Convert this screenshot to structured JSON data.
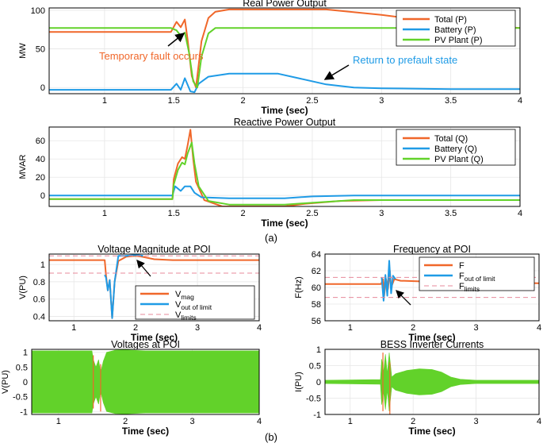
{
  "figure": {
    "label_a": "(a)",
    "label_b": "(b)"
  },
  "colors": {
    "total": "#f0672a",
    "battery": "#1f9be6",
    "pv": "#62d22a",
    "limits": "#e7899b",
    "axis": "#000000",
    "grid": "#e6e6e6"
  },
  "chart_data": [
    {
      "id": "real_power",
      "type": "line",
      "title": "Real Power Output",
      "xlabel": "Time (sec)",
      "ylabel": "MW",
      "xlim": [
        0.6,
        4
      ],
      "ylim": [
        -8,
        103
      ],
      "xticks": [
        1,
        1.5,
        2,
        2.5,
        3,
        3.5,
        4
      ],
      "yticks": [
        0,
        50,
        100
      ],
      "grid": true,
      "legend": "top-right",
      "series": [
        {
          "name": "Total (P)",
          "color": "#f0672a",
          "points": [
            [
              0.6,
              72
            ],
            [
              1.48,
              72
            ],
            [
              1.52,
              85
            ],
            [
              1.55,
              78
            ],
            [
              1.58,
              88
            ],
            [
              1.6,
              62
            ],
            [
              1.63,
              15
            ],
            [
              1.66,
              0
            ],
            [
              1.7,
              60
            ],
            [
              1.75,
              90
            ],
            [
              1.8,
              98
            ],
            [
              1.9,
              101
            ],
            [
              2.2,
              101
            ],
            [
              2.6,
              101
            ],
            [
              3,
              94
            ],
            [
              3.5,
              83
            ],
            [
              4,
              77
            ]
          ]
        },
        {
          "name": "Battery (P)",
          "color": "#1f9be6",
          "points": [
            [
              0.6,
              -3
            ],
            [
              1.48,
              -3
            ],
            [
              1.52,
              5
            ],
            [
              1.55,
              -3
            ],
            [
              1.58,
              12
            ],
            [
              1.62,
              -5
            ],
            [
              1.65,
              -6
            ],
            [
              1.68,
              5
            ],
            [
              1.75,
              14
            ],
            [
              1.9,
              18
            ],
            [
              2.25,
              18
            ],
            [
              2.4,
              12
            ],
            [
              2.6,
              4
            ],
            [
              2.8,
              0
            ],
            [
              3,
              -1
            ],
            [
              3.5,
              -2
            ],
            [
              4,
              -2
            ]
          ]
        },
        {
          "name": "PV Plant (P)",
          "color": "#62d22a",
          "points": [
            [
              0.6,
              77
            ],
            [
              1.48,
              77
            ],
            [
              1.52,
              74
            ],
            [
              1.55,
              67
            ],
            [
              1.58,
              71
            ],
            [
              1.61,
              45
            ],
            [
              1.64,
              8
            ],
            [
              1.67,
              0
            ],
            [
              1.7,
              40
            ],
            [
              1.75,
              70
            ],
            [
              1.8,
              77
            ],
            [
              4,
              77
            ]
          ]
        }
      ],
      "annotations": [
        "Temporary fault occurs",
        "Return to prefault state"
      ]
    },
    {
      "id": "reactive_power",
      "type": "line",
      "title": "Reactive Power Output",
      "xlabel": "Time (sec)",
      "ylabel": "MVAR",
      "xlim": [
        0.6,
        4
      ],
      "ylim": [
        -12,
        75
      ],
      "xticks": [
        1,
        1.5,
        2,
        2.5,
        3,
        3.5,
        4
      ],
      "yticks": [
        0,
        20,
        40,
        60
      ],
      "grid": true,
      "legend": "top-right",
      "series": [
        {
          "name": "Total (Q)",
          "color": "#f0672a",
          "points": [
            [
              0.6,
              -4
            ],
            [
              1.49,
              -4
            ],
            [
              1.5,
              18
            ],
            [
              1.53,
              35
            ],
            [
              1.56,
              42
            ],
            [
              1.58,
              40
            ],
            [
              1.6,
              55
            ],
            [
              1.62,
              72
            ],
            [
              1.64,
              40
            ],
            [
              1.66,
              15
            ],
            [
              1.72,
              -5
            ],
            [
              1.85,
              -12
            ],
            [
              2.3,
              -12
            ],
            [
              2.45,
              -9
            ],
            [
              2.7,
              -6
            ],
            [
              3,
              -5
            ],
            [
              4,
              -5
            ]
          ]
        },
        {
          "name": "Battery (Q)",
          "color": "#1f9be6",
          "points": [
            [
              0.6,
              0
            ],
            [
              1.49,
              0
            ],
            [
              1.51,
              10
            ],
            [
              1.55,
              5
            ],
            [
              1.58,
              10
            ],
            [
              1.62,
              10
            ],
            [
              1.65,
              3
            ],
            [
              1.7,
              -2
            ],
            [
              1.9,
              -3
            ],
            [
              2.3,
              -3
            ],
            [
              2.5,
              -1
            ],
            [
              2.8,
              0
            ],
            [
              4,
              0
            ]
          ]
        },
        {
          "name": "PV Plant (Q)",
          "color": "#62d22a",
          "points": [
            [
              0.6,
              -4
            ],
            [
              1.49,
              -4
            ],
            [
              1.5,
              12
            ],
            [
              1.53,
              28
            ],
            [
              1.56,
              36
            ],
            [
              1.58,
              34
            ],
            [
              1.6,
              46
            ],
            [
              1.63,
              58
            ],
            [
              1.65,
              35
            ],
            [
              1.68,
              10
            ],
            [
              1.75,
              -6
            ],
            [
              1.9,
              -10
            ],
            [
              2.3,
              -10
            ],
            [
              2.5,
              -8
            ],
            [
              2.8,
              -5
            ],
            [
              4,
              -5
            ]
          ]
        }
      ]
    },
    {
      "id": "voltage_magnitude",
      "type": "line",
      "title": "Voltage Magnitude at POI",
      "xlabel": "Time (sec)",
      "ylabel": "V(PU)",
      "xlim": [
        0.6,
        4
      ],
      "ylim": [
        0.35,
        1.12
      ],
      "xticks": [
        1,
        2,
        3,
        4
      ],
      "yticks": [
        0.4,
        0.6,
        0.8,
        1
      ],
      "grid": true,
      "legend": "bottom-right",
      "series": [
        {
          "name": "V_mag",
          "color": "#f0672a",
          "points": [
            [
              0.6,
              1.05
            ],
            [
              1.5,
              1.05
            ],
            [
              1.52,
              0.88
            ],
            [
              1.55,
              0.7
            ],
            [
              1.58,
              0.82
            ],
            [
              1.62,
              0.38
            ],
            [
              1.66,
              0.8
            ],
            [
              1.72,
              1.04
            ],
            [
              1.85,
              1.09
            ],
            [
              2.0,
              1.1
            ],
            [
              2.1,
              1.09
            ],
            [
              2.3,
              1.06
            ],
            [
              2.6,
              1.05
            ],
            [
              4,
              1.05
            ]
          ]
        },
        {
          "name": "V_out of limit",
          "color": "#1f9be6",
          "points": [
            [
              1.5,
              0.88
            ],
            [
              1.52,
              0.85
            ],
            [
              1.55,
              0.7
            ],
            [
              1.58,
              0.82
            ],
            [
              1.62,
              0.38
            ],
            [
              1.66,
              0.8
            ],
            [
              1.72,
              1.1
            ],
            [
              1.85,
              1.1
            ],
            [
              2.0,
              1.11
            ],
            [
              2.12,
              1.1
            ]
          ]
        },
        {
          "name": "V_limits",
          "color": "#e7899b",
          "dashed": true,
          "points": [
            [
              0.6,
              1.1
            ],
            [
              4,
              1.1
            ]
          ]
        },
        {
          "name": "V_limits_lower",
          "color": "#e7899b",
          "dashed": true,
          "points": [
            [
              0.6,
              0.9
            ],
            [
              4,
              0.9
            ]
          ]
        }
      ],
      "legend_labels": [
        {
          "main": "V",
          "sub": "mag"
        },
        {
          "main": "V",
          "sub": "out of limit"
        },
        {
          "main": "V",
          "sub": "limits"
        }
      ]
    },
    {
      "id": "frequency",
      "type": "line",
      "title": "Frequency at POI",
      "xlabel": "Time (sec)",
      "ylabel": "F(Hz)",
      "xlim": [
        0.6,
        4
      ],
      "ylim": [
        56,
        64
      ],
      "xticks": [
        1,
        2,
        3,
        4
      ],
      "yticks": [
        56,
        58,
        60,
        62,
        64
      ],
      "grid": true,
      "legend": "top-right",
      "series": [
        {
          "name": "F",
          "color": "#f0672a",
          "points": [
            [
              0.6,
              60.4
            ],
            [
              1.49,
              60.4
            ],
            [
              1.52,
              61
            ],
            [
              1.54,
              59
            ],
            [
              1.57,
              61
            ],
            [
              1.6,
              59.8
            ],
            [
              1.63,
              62
            ],
            [
              1.65,
              60
            ],
            [
              1.7,
              61
            ],
            [
              1.8,
              60.8
            ],
            [
              2.2,
              60.7
            ],
            [
              4,
              60.5
            ]
          ]
        },
        {
          "name": "F_out of limit",
          "color": "#1f9be6",
          "points": [
            [
              1.5,
              61.2
            ],
            [
              1.53,
              58.4
            ],
            [
              1.56,
              61.5
            ],
            [
              1.59,
              59
            ],
            [
              1.62,
              63.2
            ],
            [
              1.65,
              59.3
            ],
            [
              1.68,
              61.4
            ],
            [
              1.72,
              61
            ]
          ]
        },
        {
          "name": "F_limits",
          "color": "#e7899b",
          "dashed": true,
          "points": [
            [
              0.6,
              61.2
            ],
            [
              4,
              61.2
            ]
          ]
        },
        {
          "name": "F_limits_lower",
          "color": "#e7899b",
          "dashed": true,
          "points": [
            [
              0.6,
              58.8
            ],
            [
              4,
              58.8
            ]
          ]
        }
      ],
      "legend_labels": [
        {
          "main": "F",
          "sub": ""
        },
        {
          "main": "F",
          "sub": "out of limit"
        },
        {
          "main": "F",
          "sub": "limits"
        }
      ]
    },
    {
      "id": "voltages",
      "type": "area",
      "title": "Voltages at POI",
      "xlabel": "Time (sec)",
      "ylabel": "V(PU)",
      "xlim": [
        0.6,
        4
      ],
      "ylim": [
        -1.1,
        1.1
      ],
      "xticks": [
        1,
        2,
        3,
        4
      ],
      "yticks": [
        -1,
        -0.5,
        0,
        0.5,
        1
      ],
      "grid": true,
      "envelope": [
        [
          0.6,
          1.05
        ],
        [
          1.5,
          1.05
        ],
        [
          1.52,
          0.75
        ],
        [
          1.56,
          0.5
        ],
        [
          1.6,
          0.75
        ],
        [
          1.63,
          0.3
        ],
        [
          1.67,
          0.7
        ],
        [
          1.72,
          1.0
        ],
        [
          1.85,
          1.07
        ],
        [
          2.0,
          1.08
        ],
        [
          2.3,
          1.05
        ],
        [
          4,
          1.05
        ]
      ],
      "color": "#62d22a"
    },
    {
      "id": "inverter_currents",
      "type": "area",
      "title": "BESS Inverter Currents",
      "xlabel": "Time (sec)",
      "ylabel": "I(PU)",
      "xlim": [
        0.6,
        4
      ],
      "ylim": [
        -1,
        1
      ],
      "xticks": [
        1,
        2,
        3,
        4
      ],
      "yticks": [
        -1,
        -0.5,
        0,
        0.5,
        1
      ],
      "grid": true,
      "envelope": [
        [
          0.6,
          0.05
        ],
        [
          1.48,
          0.07
        ],
        [
          1.5,
          0.7
        ],
        [
          1.53,
          0.3
        ],
        [
          1.56,
          0.85
        ],
        [
          1.59,
          0.25
        ],
        [
          1.62,
          0.9
        ],
        [
          1.66,
          0.15
        ],
        [
          1.72,
          0.25
        ],
        [
          1.9,
          0.35
        ],
        [
          2.1,
          0.4
        ],
        [
          2.3,
          0.38
        ],
        [
          2.45,
          0.3
        ],
        [
          2.6,
          0.15
        ],
        [
          2.75,
          0.08
        ],
        [
          3,
          0.05
        ],
        [
          4,
          0.05
        ]
      ],
      "color": "#62d22a"
    }
  ]
}
